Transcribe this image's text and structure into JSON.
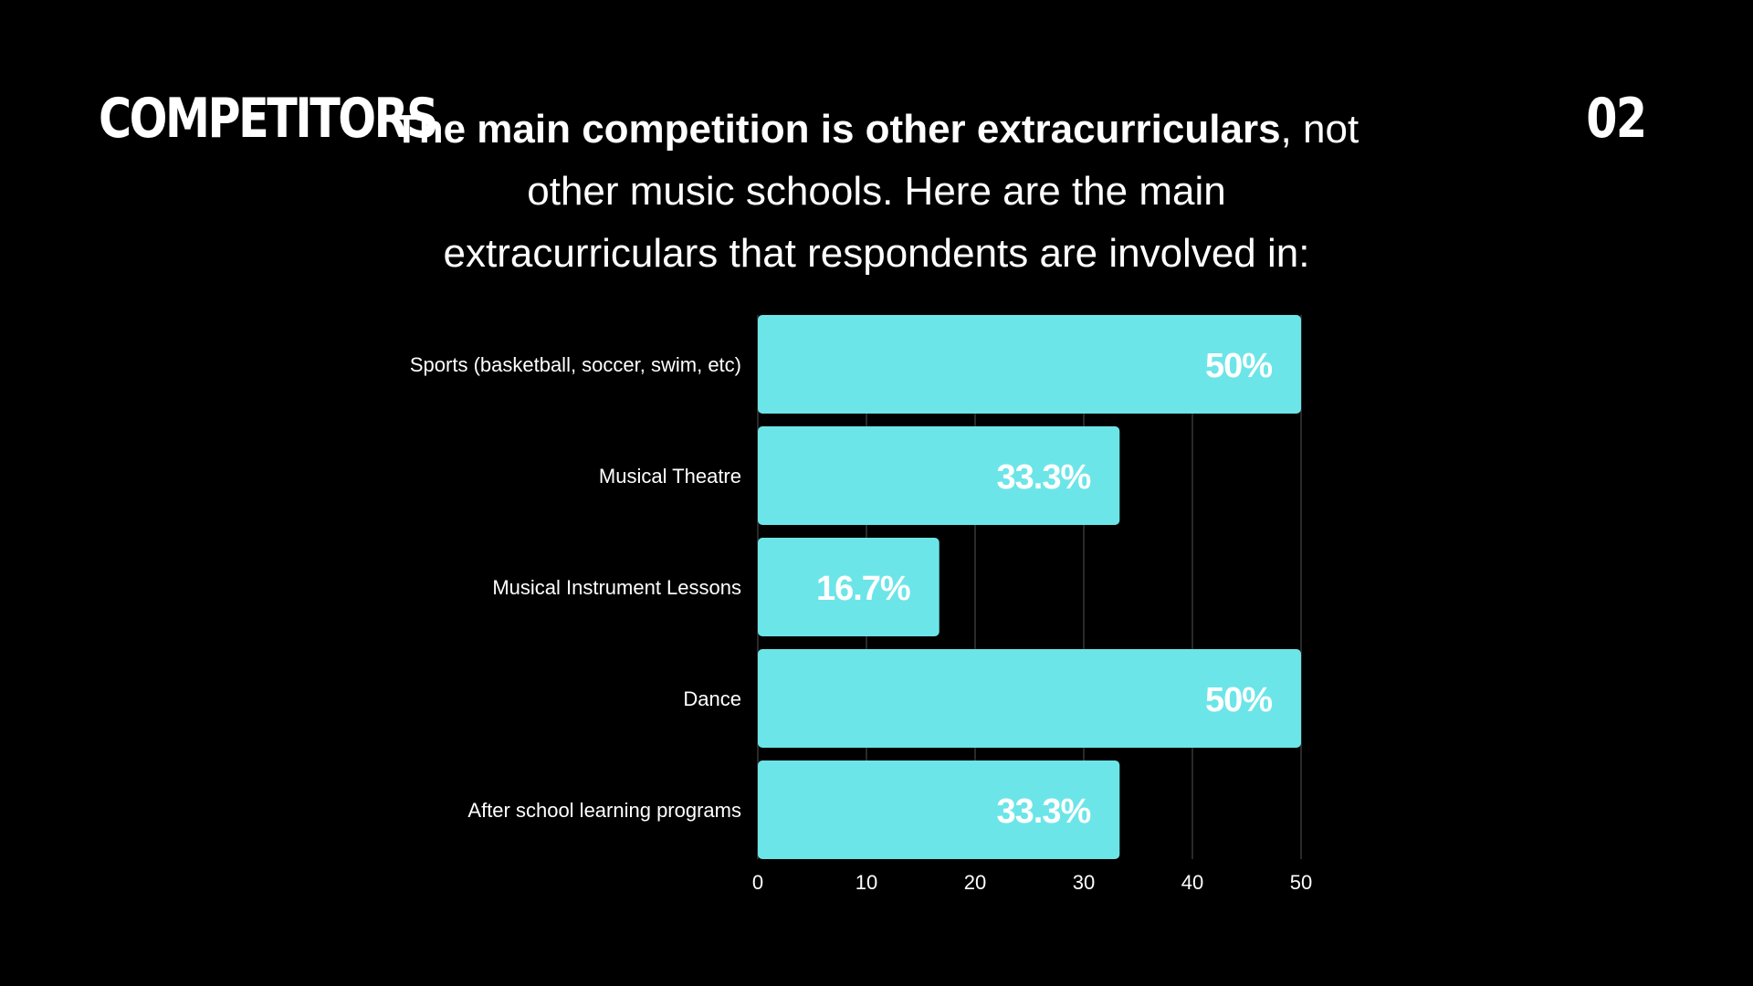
{
  "section_label": "COMPETITORS",
  "page_number": "02",
  "headline": {
    "lead": "The main competition is other extracurriculars",
    "rest": ", not other music schools. Here are the main extracurriculars that respondents are involved in:"
  },
  "colors": {
    "background": "#000000",
    "bar": "#6ce5e8",
    "text": "#ffffff",
    "grid": "#2a2a2a"
  },
  "chart_data": {
    "type": "bar",
    "orientation": "horizontal",
    "title": "",
    "xlabel": "",
    "ylabel": "",
    "categories": [
      "Sports (basketball, soccer, swim, etc)",
      "Musical Theatre",
      "Musical Instrument Lessons",
      "Dance",
      "After school learning programs"
    ],
    "values": [
      50,
      33.3,
      16.7,
      50,
      33.3
    ],
    "data_labels": [
      "50%",
      "33.3%",
      "16.7%",
      "50%",
      "33.3%"
    ],
    "xlim": [
      0,
      50
    ],
    "x_ticks": [
      "0",
      "10",
      "20",
      "30",
      "40",
      "50"
    ],
    "grid": true,
    "legend": "none"
  }
}
